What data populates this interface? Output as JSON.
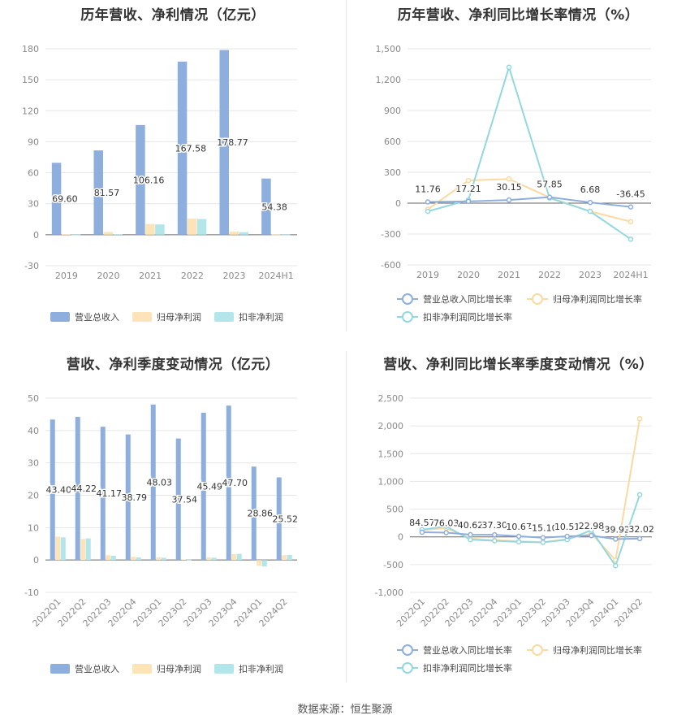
{
  "source_text": "数据来源：恒生聚源",
  "colors": {
    "rev": "#8eaedd",
    "np": "#fde3b8",
    "dnp": "#b2e6ea",
    "rev_line": "#8eaedd",
    "np_line": "#fbd9a0",
    "dnp_line": "#93d8df"
  },
  "chart_data": [
    {
      "type": "bar",
      "title": "历年营收、净利情况（亿元）",
      "categories": [
        "2019",
        "2020",
        "2021",
        "2022",
        "2023",
        "2024H1"
      ],
      "series": [
        {
          "name": "营业总收入",
          "values": [
            69.6,
            81.57,
            106.16,
            167.58,
            178.77,
            54.38
          ],
          "labels": [
            "69.60",
            "81.57",
            "106.16",
            "167.58",
            "178.77",
            "54.38"
          ]
        },
        {
          "name": "归母净利润",
          "values": [
            0.5,
            2.6,
            10.4,
            15.6,
            3.0,
            0.3
          ]
        },
        {
          "name": "扣非净利润",
          "values": [
            0.2,
            0.5,
            10.0,
            15.2,
            2.5,
            0.2
          ]
        }
      ],
      "yticks": [
        "-30",
        "0",
        "30",
        "60",
        "90",
        "120",
        "150",
        "180"
      ],
      "ylim": [
        -30,
        180
      ],
      "grid": true,
      "legend": "bottom"
    },
    {
      "type": "line",
      "title": "历年营收、净利同比增长率情况（%）",
      "categories": [
        "2019",
        "2020",
        "2021",
        "2022",
        "2023",
        "2024H1"
      ],
      "series": [
        {
          "name": "营业总收入同比增长率",
          "values": [
            11.76,
            17.21,
            30.15,
            57.85,
            6.68,
            -36.45
          ],
          "labels": [
            "11.76",
            "17.21",
            "30.15",
            "57.85",
            "6.68",
            "-36.45"
          ]
        },
        {
          "name": "归母净利润同比增长率",
          "values": [
            -60,
            220,
            235,
            55,
            -80,
            -180
          ]
        },
        {
          "name": "扣非净利润同比增长率",
          "values": [
            -80,
            30,
            1320,
            50,
            -80,
            -350
          ]
        }
      ],
      "yticks": [
        "-600",
        "-300",
        "0",
        "300",
        "600",
        "900",
        "1,200",
        "1,500"
      ],
      "ylim": [
        -600,
        1500
      ],
      "grid": true,
      "legend": "bottom"
    },
    {
      "type": "bar",
      "title": "营收、净利季度变动情况（亿元）",
      "categories": [
        "2022Q1",
        "2022Q2",
        "2022Q3",
        "2022Q4",
        "2023Q1",
        "2023Q2",
        "2023Q3",
        "2023Q4",
        "2024Q1",
        "2024Q2"
      ],
      "series": [
        {
          "name": "营业总收入",
          "values": [
            43.4,
            44.22,
            41.17,
            38.79,
            48.03,
            37.54,
            45.49,
            47.7,
            28.86,
            25.52
          ],
          "labels": [
            "43.40",
            "44.22",
            "41.17",
            "38.79",
            "48.03",
            "37.54",
            "45.49",
            "47.70",
            "28.86",
            "25.52"
          ]
        },
        {
          "name": "归母净利润",
          "values": [
            7.2,
            6.5,
            1.5,
            1.0,
            0.8,
            0.2,
            0.8,
            1.8,
            -1.8,
            1.5
          ]
        },
        {
          "name": "扣非净利润",
          "values": [
            7.0,
            6.7,
            1.3,
            0.8,
            0.7,
            0.1,
            0.7,
            1.9,
            -2.0,
            1.6
          ]
        }
      ],
      "yticks": [
        "-10",
        "0",
        "10",
        "20",
        "30",
        "40",
        "50"
      ],
      "ylim": [
        -10,
        50
      ],
      "grid": true,
      "legend": "bottom"
    },
    {
      "type": "line",
      "title": "营收、净利同比增长率季度变动情况（%）",
      "categories": [
        "2022Q1",
        "2022Q2",
        "2022Q3",
        "2022Q4",
        "2023Q1",
        "2023Q2",
        "2023Q3",
        "2023Q4",
        "2024Q1",
        "2024Q2"
      ],
      "series": [
        {
          "name": "营业总收入同比增长率",
          "values": [
            84.57,
            76.03,
            40.62,
            37.3,
            10.67,
            -15.1,
            10.51,
            22.98,
            -39.92,
            -32.02
          ],
          "labels": [
            "84.57",
            "76.03",
            "40.62",
            "37.30",
            "10.67",
            "-15.10",
            "10.51",
            "22.98",
            "-39.92",
            "-32.02"
          ]
        },
        {
          "name": "归母净利润同比增长率",
          "values": [
            120,
            160,
            -30,
            -60,
            -80,
            -95,
            -40,
            60,
            -420,
            2130
          ]
        },
        {
          "name": "扣非净利润同比增长率",
          "values": [
            130,
            190,
            -50,
            -70,
            -90,
            -100,
            -50,
            120,
            -520,
            760
          ]
        }
      ],
      "yticks": [
        "-1,000",
        "-500",
        "0",
        "500",
        "1,000",
        "1,500",
        "2,000",
        "2,500"
      ],
      "ylim": [
        -1000,
        2500
      ],
      "grid": true,
      "legend": "bottom"
    }
  ]
}
